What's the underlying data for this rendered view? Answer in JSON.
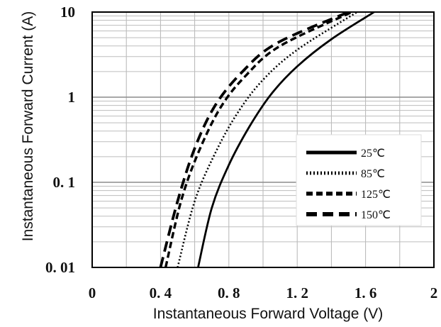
{
  "chart_data": {
    "type": "line",
    "xlabel": "Instantaneous Forward Voltage (V)",
    "ylabel": "Instantaneous Forward Current (A)",
    "xlim": [
      0,
      2
    ],
    "ylim": [
      0.01,
      10
    ],
    "yscale": "log",
    "grid": true,
    "legend_position": "bottom-right",
    "x_ticks": [
      "0",
      "0. 4",
      "0. 8",
      "1. 2",
      "1. 6",
      "2"
    ],
    "y_ticks": [
      "0. 01",
      "0. 1",
      "1",
      "10"
    ],
    "series": [
      {
        "name": "25℃",
        "style": "solid",
        "x": [
          0.62,
          0.7,
          0.8,
          0.92,
          1.05,
          1.2,
          1.4,
          1.65
        ],
        "y": [
          0.01,
          0.05,
          0.16,
          0.45,
          1.1,
          2.3,
          4.8,
          10
        ]
      },
      {
        "name": "85℃",
        "style": "dotted",
        "x": [
          0.5,
          0.6,
          0.72,
          0.85,
          1.0,
          1.2,
          1.55
        ],
        "y": [
          0.01,
          0.06,
          0.22,
          0.65,
          1.6,
          3.6,
          10
        ]
      },
      {
        "name": "125℃",
        "style": "dashed",
        "x": [
          0.43,
          0.52,
          0.62,
          0.75,
          0.9,
          1.1,
          1.52
        ],
        "y": [
          0.01,
          0.06,
          0.22,
          0.75,
          1.8,
          4.0,
          10
        ]
      },
      {
        "name": "150℃",
        "style": "longdash",
        "x": [
          0.4,
          0.5,
          0.6,
          0.72,
          0.88,
          1.08,
          1.5
        ],
        "y": [
          0.01,
          0.06,
          0.25,
          0.8,
          2.0,
          4.3,
          10
        ]
      }
    ]
  }
}
